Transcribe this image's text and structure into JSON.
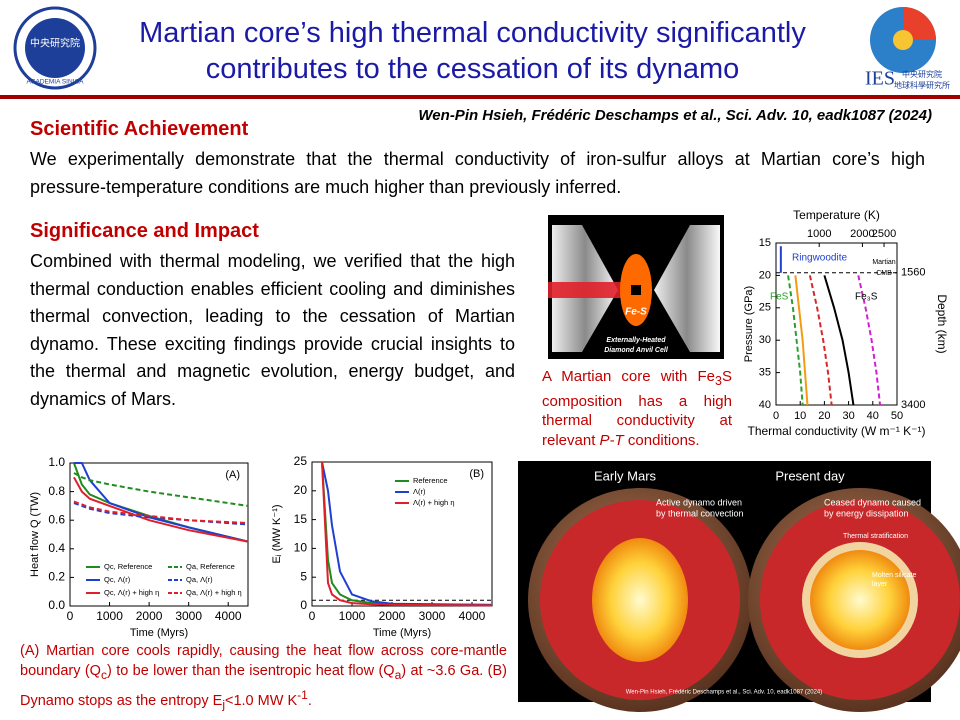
{
  "header": {
    "title_line1": "Martian core’s high thermal conductivity significantly",
    "title_line2": "contributes to the cessation of its dynamo",
    "citation": "Wen-Pin Hsieh, Frédéric Deschamps et al., Sci. Adv. 10, eadk1087 (2024)"
  },
  "logos": {
    "left_name": "ACADEMIA SINICA",
    "left_chinese": "中央研究院",
    "right_name": "IES",
    "right_chinese1": "中央研究院",
    "right_chinese2": "地球科學研究所"
  },
  "sections": [
    {
      "heading": "Scientific Achievement",
      "body": "We experimentally demonstrate that the thermal conductivity of iron-sulfur alloys at Martian core’s high pressure-temperature conditions are much higher than previously inferred."
    },
    {
      "heading": "Significance and Impact",
      "body": "Combined with thermal modeling, we verified that the high thermal conduction enables efficient cooling and diminishes thermal convection, leading to the cessation of Martian dynamo. These exciting findings provide crucial insights to the thermal and magnetic evolution, energy budget, and dynamics of Mars."
    }
  ],
  "dac_figure": {
    "sample_label": "Fe-S",
    "cell_label_line1": "Externally-Heated",
    "cell_label_line2": "Diamond Anvil Cell",
    "caption": [
      "A Martian core with Fe",
      "3",
      "S composition has a high thermal conductivity at relevant ",
      "P-T",
      " conditions."
    ]
  },
  "chart_data": [
    {
      "type": "line",
      "orientation": "horizontal",
      "xlabel": "Thermal conductivity (W m⁻¹ K⁻¹)",
      "ylabel": "Pressure (GPa)",
      "x2label": "Temperature (K)",
      "y2label": "Depth (km)",
      "xlim": [
        0,
        50
      ],
      "xticks": [
        0,
        10,
        20,
        30,
        40,
        50
      ],
      "ylim": [
        40,
        15
      ],
      "yticks": [
        15,
        20,
        25,
        30,
        35,
        40
      ],
      "x2lim": [
        0,
        2800
      ],
      "x2ticks": [
        1000,
        2000,
        2500
      ],
      "y2lim": [
        3400,
        1146
      ],
      "y2ticks": [
        1560,
        3400
      ],
      "hline": 19.6,
      "annotations": [
        "Ringwoodite",
        "Martian",
        "CMB",
        "FeS",
        "Fe₃S"
      ],
      "series": [
        {
          "color": "#1f3fd0",
          "dash": false,
          "x": [
            15.5,
            19.6
          ],
          "values": [
            2,
            2
          ]
        },
        {
          "color": "#2aa02a",
          "dash": true,
          "x": [
            20,
            25,
            30,
            35,
            40
          ],
          "values": [
            5,
            7,
            8.5,
            10,
            11
          ]
        },
        {
          "color": "#f39c12",
          "dash": false,
          "x": [
            20,
            25,
            30,
            35,
            40
          ],
          "values": [
            8,
            9.5,
            11,
            12,
            13
          ]
        },
        {
          "color": "#d62728",
          "dash": true,
          "x": [
            20,
            25,
            30,
            35,
            40
          ],
          "values": [
            14,
            17,
            19.5,
            21.5,
            23
          ]
        },
        {
          "color": "#000000",
          "dash": false,
          "x": [
            20,
            25,
            30,
            35,
            40
          ],
          "values": [
            20,
            24,
            27.5,
            30,
            32
          ]
        },
        {
          "color": "#d020d0",
          "dash": true,
          "x": [
            20,
            25,
            30,
            35,
            40
          ],
          "values": [
            34,
            37,
            39.5,
            41.5,
            43
          ]
        }
      ]
    },
    {
      "type": "line",
      "orientation": "vertical",
      "panel_label": "(A)",
      "xlabel": "Time (Myrs)",
      "ylabel": "Heat flow Q (TW)",
      "xlim": [
        0,
        4500
      ],
      "xticks": [
        0,
        1000,
        2000,
        3000,
        4000
      ],
      "ylim": [
        0,
        1.0
      ],
      "yticks": [
        {
          "value": 0,
          "label": "0.0"
        },
        0.2,
        0.4,
        0.6,
        0.8,
        {
          "value": 1,
          "label": "1.0"
        }
      ],
      "series": [
        {
          "name": "Qc, Reference",
          "color": "#1e8c1e",
          "dash": false,
          "x": [
            100,
            300,
            500,
            1000,
            2000,
            3000,
            4500
          ],
          "values": [
            1.0,
            0.85,
            0.78,
            0.72,
            0.63,
            0.55,
            0.45
          ]
        },
        {
          "name": "Qc, Λ(r)",
          "color": "#1f3fd0",
          "dash": false,
          "x": [
            100,
            300,
            500,
            1000,
            2000,
            3000,
            4500
          ],
          "values": [
            1.0,
            1.0,
            0.88,
            0.72,
            0.62,
            0.55,
            0.45
          ]
        },
        {
          "name": "Qc, Λ(r) + high η",
          "color": "#e01f2a",
          "dash": false,
          "x": [
            100,
            300,
            500,
            1000,
            2000,
            3000,
            4500
          ],
          "values": [
            0.9,
            0.8,
            0.75,
            0.7,
            0.6,
            0.53,
            0.45
          ]
        },
        {
          "name": "Qa, Reference",
          "color": "#1e8c1e",
          "dash": true,
          "x": [
            100,
            300,
            500,
            1000,
            2000,
            3000,
            4500
          ],
          "values": [
            0.93,
            0.9,
            0.88,
            0.85,
            0.8,
            0.76,
            0.7
          ]
        },
        {
          "name": "Qa, Λ(r)",
          "color": "#1f3fd0",
          "dash": true,
          "x": [
            100,
            300,
            500,
            1000,
            2000,
            3000,
            4500
          ],
          "values": [
            0.72,
            0.7,
            0.68,
            0.65,
            0.62,
            0.6,
            0.57
          ]
        },
        {
          "name": "Qa, Λ(r) + high η",
          "color": "#e01f2a",
          "dash": true,
          "x": [
            100,
            300,
            500,
            1000,
            2000,
            3000,
            4500
          ],
          "values": [
            0.73,
            0.71,
            0.69,
            0.66,
            0.63,
            0.6,
            0.58
          ]
        }
      ]
    },
    {
      "type": "line",
      "orientation": "vertical",
      "panel_label": "(B)",
      "xlabel": "Time (Myrs)",
      "ylabel": "Eⱼ (MW K⁻¹)",
      "xlim": [
        0,
        4500
      ],
      "xticks": [
        0,
        1000,
        2000,
        3000,
        4000
      ],
      "ylim": [
        0,
        25
      ],
      "yticks": [
        0,
        5,
        10,
        15,
        20,
        25
      ],
      "hline": 1,
      "series": [
        {
          "name": "Reference",
          "color": "#1e8c1e",
          "dash": false,
          "x": [
            250,
            400,
            500,
            700,
            1000,
            1500,
            2000,
            4500
          ],
          "values": [
            25,
            8,
            4,
            2,
            1,
            0.5,
            0.3,
            0.2
          ]
        },
        {
          "name": "Λ(r)",
          "color": "#1f3fd0",
          "dash": false,
          "x": [
            250,
            400,
            500,
            700,
            1000,
            1500,
            2000,
            4500
          ],
          "values": [
            25,
            20,
            14,
            6,
            2,
            0.8,
            0.4,
            0.2
          ]
        },
        {
          "name": "Λ(r) + high η",
          "color": "#e01f2a",
          "dash": false,
          "x": [
            250,
            400,
            500,
            700,
            1000,
            1500,
            2000,
            4500
          ],
          "values": [
            25,
            4,
            2,
            1,
            0.5,
            0.3,
            0.2,
            0.1
          ]
        }
      ]
    }
  ],
  "plots_caption": [
    "(A) Martian core cools rapidly, causing the heat flow across core-mantle boundary (Q",
    "c",
    ") to be lower than the isentropic heat flow (Q",
    "a",
    ") at ~3.6 Ga. (B) Dynamo stops as the entropy E",
    "j",
    "<1.0 MW K",
    "-1",
    "."
  ],
  "mars_figure": {
    "left_title": "Early Mars",
    "right_title": "Present day",
    "left_note1": "Active dynamo driven",
    "left_note2": "by thermal convection",
    "right_note1": "Ceased dynamo caused",
    "right_note2": "by energy dissipation",
    "stratification": "Thermal stratification",
    "molten1": "Molten silicate",
    "molten2": "layer",
    "credit": "Wen-Pin Hsieh, Frédéric Deschamps et al., Sci. Adv. 10, eadk1087 (2024)"
  }
}
